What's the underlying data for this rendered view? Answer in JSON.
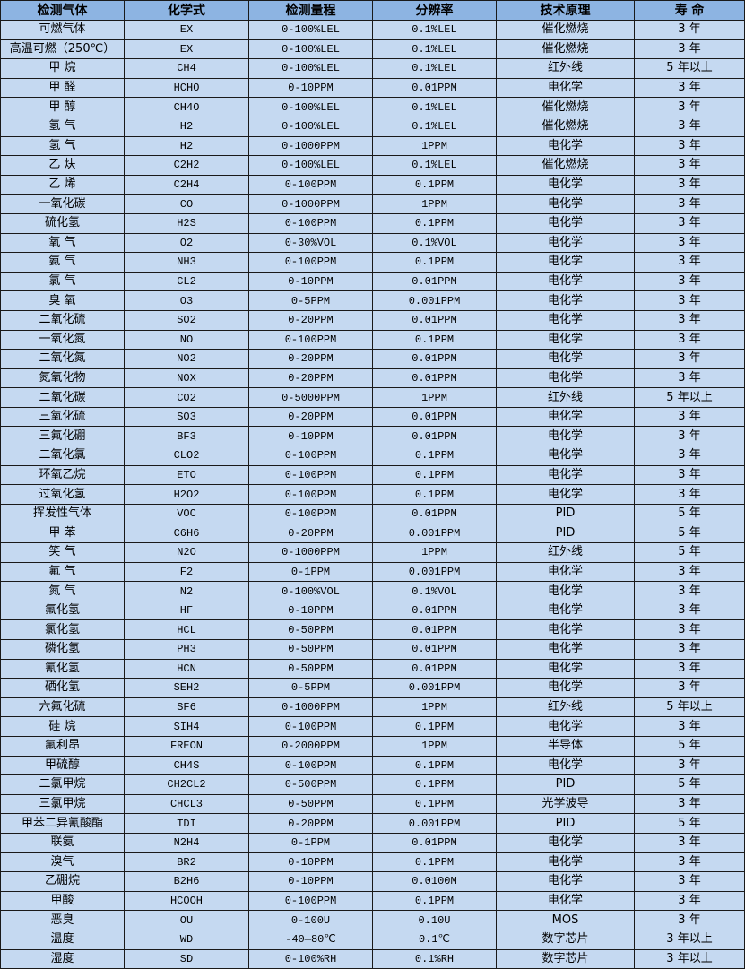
{
  "table": {
    "headers": [
      "检测气体",
      "化学式",
      "检测量程",
      "分辨率",
      "技术原理",
      "寿 命"
    ],
    "rows": [
      [
        "可燃气体",
        "EX",
        "0-100%LEL",
        "0.1%LEL",
        "催化燃烧",
        "3 年"
      ],
      [
        "高温可燃（250℃）",
        "EX",
        "0-100%LEL",
        "0.1%LEL",
        "催化燃烧",
        "3 年"
      ],
      [
        "甲 烷",
        "CH4",
        "0-100%LEL",
        "0.1%LEL",
        "红外线",
        "5 年以上"
      ],
      [
        "甲 醛",
        "HCHO",
        "0-10PPM",
        "0.01PPM",
        "电化学",
        "3 年"
      ],
      [
        "甲 醇",
        "CH4O",
        "0-100%LEL",
        "0.1%LEL",
        "催化燃烧",
        "3 年"
      ],
      [
        "氢 气",
        "H2",
        "0-100%LEL",
        "0.1%LEL",
        "催化燃烧",
        "3 年"
      ],
      [
        "氢 气",
        "H2",
        "0-1000PPM",
        "1PPM",
        "电化学",
        "3 年"
      ],
      [
        "乙 炔",
        "C2H2",
        "0-100%LEL",
        "0.1%LEL",
        "催化燃烧",
        "3 年"
      ],
      [
        "乙 烯",
        "C2H4",
        "0-100PPM",
        "0.1PPM",
        "电化学",
        "3 年"
      ],
      [
        "一氧化碳",
        "CO",
        "0-1000PPM",
        "1PPM",
        "电化学",
        "3 年"
      ],
      [
        "硫化氢",
        "H2S",
        "0-100PPM",
        "0.1PPM",
        "电化学",
        "3 年"
      ],
      [
        "氧 气",
        "O2",
        "0-30%VOL",
        "0.1%VOL",
        "电化学",
        "3 年"
      ],
      [
        "氨 气",
        "NH3",
        "0-100PPM",
        "0.1PPM",
        "电化学",
        "3 年"
      ],
      [
        "氯 气",
        "CL2",
        "0-10PPM",
        "0.01PPM",
        "电化学",
        "3 年"
      ],
      [
        "臭 氧",
        "O3",
        "0-5PPM",
        "0.001PPM",
        "电化学",
        "3 年"
      ],
      [
        "二氧化硫",
        "SO2",
        "0-20PPM",
        "0.01PPM",
        "电化学",
        "3 年"
      ],
      [
        "一氧化氮",
        "NO",
        "0-100PPM",
        "0.1PPM",
        "电化学",
        "3 年"
      ],
      [
        "二氧化氮",
        "NO2",
        "0-20PPM",
        "0.01PPM",
        "电化学",
        "3 年"
      ],
      [
        "氮氧化物",
        "NOX",
        "0-20PPM",
        "0.01PPM",
        "电化学",
        "3 年"
      ],
      [
        "二氧化碳",
        "CO2",
        "0-5000PPM",
        "1PPM",
        "红外线",
        "5 年以上"
      ],
      [
        "三氧化硫",
        "SO3",
        "0-20PPM",
        "0.01PPM",
        "电化学",
        "3 年"
      ],
      [
        "三氟化硼",
        "BF3",
        "0-10PPM",
        "0.01PPM",
        "电化学",
        "3 年"
      ],
      [
        "二氧化氯",
        "CLO2",
        "0-100PPM",
        "0.1PPM",
        "电化学",
        "3 年"
      ],
      [
        "环氧乙烷",
        "ETO",
        "0-100PPM",
        "0.1PPM",
        "电化学",
        "3 年"
      ],
      [
        "过氧化氢",
        "H2O2",
        "0-100PPM",
        "0.1PPM",
        "电化学",
        "3 年"
      ],
      [
        "挥发性气体",
        "VOC",
        "0-100PPM",
        "0.01PPM",
        "PID",
        "5 年"
      ],
      [
        "甲 苯",
        "C6H6",
        "0-20PPM",
        "0.001PPM",
        "PID",
        "5 年"
      ],
      [
        "笑 气",
        "N2O",
        "0-1000PPM",
        "1PPM",
        "红外线",
        "5 年"
      ],
      [
        "氟 气",
        "F2",
        "0-1PPM",
        "0.001PPM",
        "电化学",
        "3 年"
      ],
      [
        "氮 气",
        "N2",
        "0-100%VOL",
        "0.1%VOL",
        "电化学",
        "3 年"
      ],
      [
        "氟化氢",
        "HF",
        "0-10PPM",
        "0.01PPM",
        "电化学",
        "3 年"
      ],
      [
        "氯化氢",
        "HCL",
        "0-50PPM",
        "0.01PPM",
        "电化学",
        "3 年"
      ],
      [
        "磷化氢",
        "PH3",
        "0-50PPM",
        "0.01PPM",
        "电化学",
        "3 年"
      ],
      [
        "氰化氢",
        "HCN",
        "0-50PPM",
        "0.01PPM",
        "电化学",
        "3 年"
      ],
      [
        "硒化氢",
        "SEH2",
        "0-5PPM",
        "0.001PPM",
        "电化学",
        "3 年"
      ],
      [
        "六氟化硫",
        "SF6",
        "0-1000PPM",
        "1PPM",
        "红外线",
        "5 年以上"
      ],
      [
        "硅 烷",
        "SIH4",
        "0-100PPM",
        "0.1PPM",
        "电化学",
        "3 年"
      ],
      [
        "氟利昂",
        "FREON",
        "0-2000PPM",
        "1PPM",
        "半导体",
        "5 年"
      ],
      [
        "甲硫醇",
        "CH4S",
        "0-100PPM",
        "0.1PPM",
        "电化学",
        "3 年"
      ],
      [
        "二氯甲烷",
        "CH2CL2",
        "0-500PPM",
        "0.1PPM",
        "PID",
        "5 年"
      ],
      [
        "三氯甲烷",
        "CHCL3",
        "0-50PPM",
        "0.1PPM",
        "光学波导",
        "3 年"
      ],
      [
        "甲苯二异氰酸酯",
        "TDI",
        "0-20PPM",
        "0.001PPM",
        "PID",
        "5 年"
      ],
      [
        "联氨",
        "N2H4",
        "0-1PPM",
        "0.01PPM",
        "电化学",
        "3 年"
      ],
      [
        "溴气",
        "BR2",
        "0-10PPM",
        "0.1PPM",
        "电化学",
        "3 年"
      ],
      [
        "乙硼烷",
        "B2H6",
        "0-10PPM",
        "0.0100M",
        "电化学",
        "3 年"
      ],
      [
        "甲酸",
        "HCOOH",
        "0-100PPM",
        "0.1PPM",
        "电化学",
        "3 年"
      ],
      [
        "恶臭",
        "OU",
        "0-100U",
        "0.10U",
        "MOS",
        "3 年"
      ],
      [
        "温度",
        "WD",
        "-40—80℃",
        "0.1℃",
        "数字芯片",
        "3 年以上"
      ],
      [
        "湿度",
        "SD",
        "0-100%RH",
        "0.1%RH",
        "数字芯片",
        "3 年以上"
      ]
    ]
  }
}
